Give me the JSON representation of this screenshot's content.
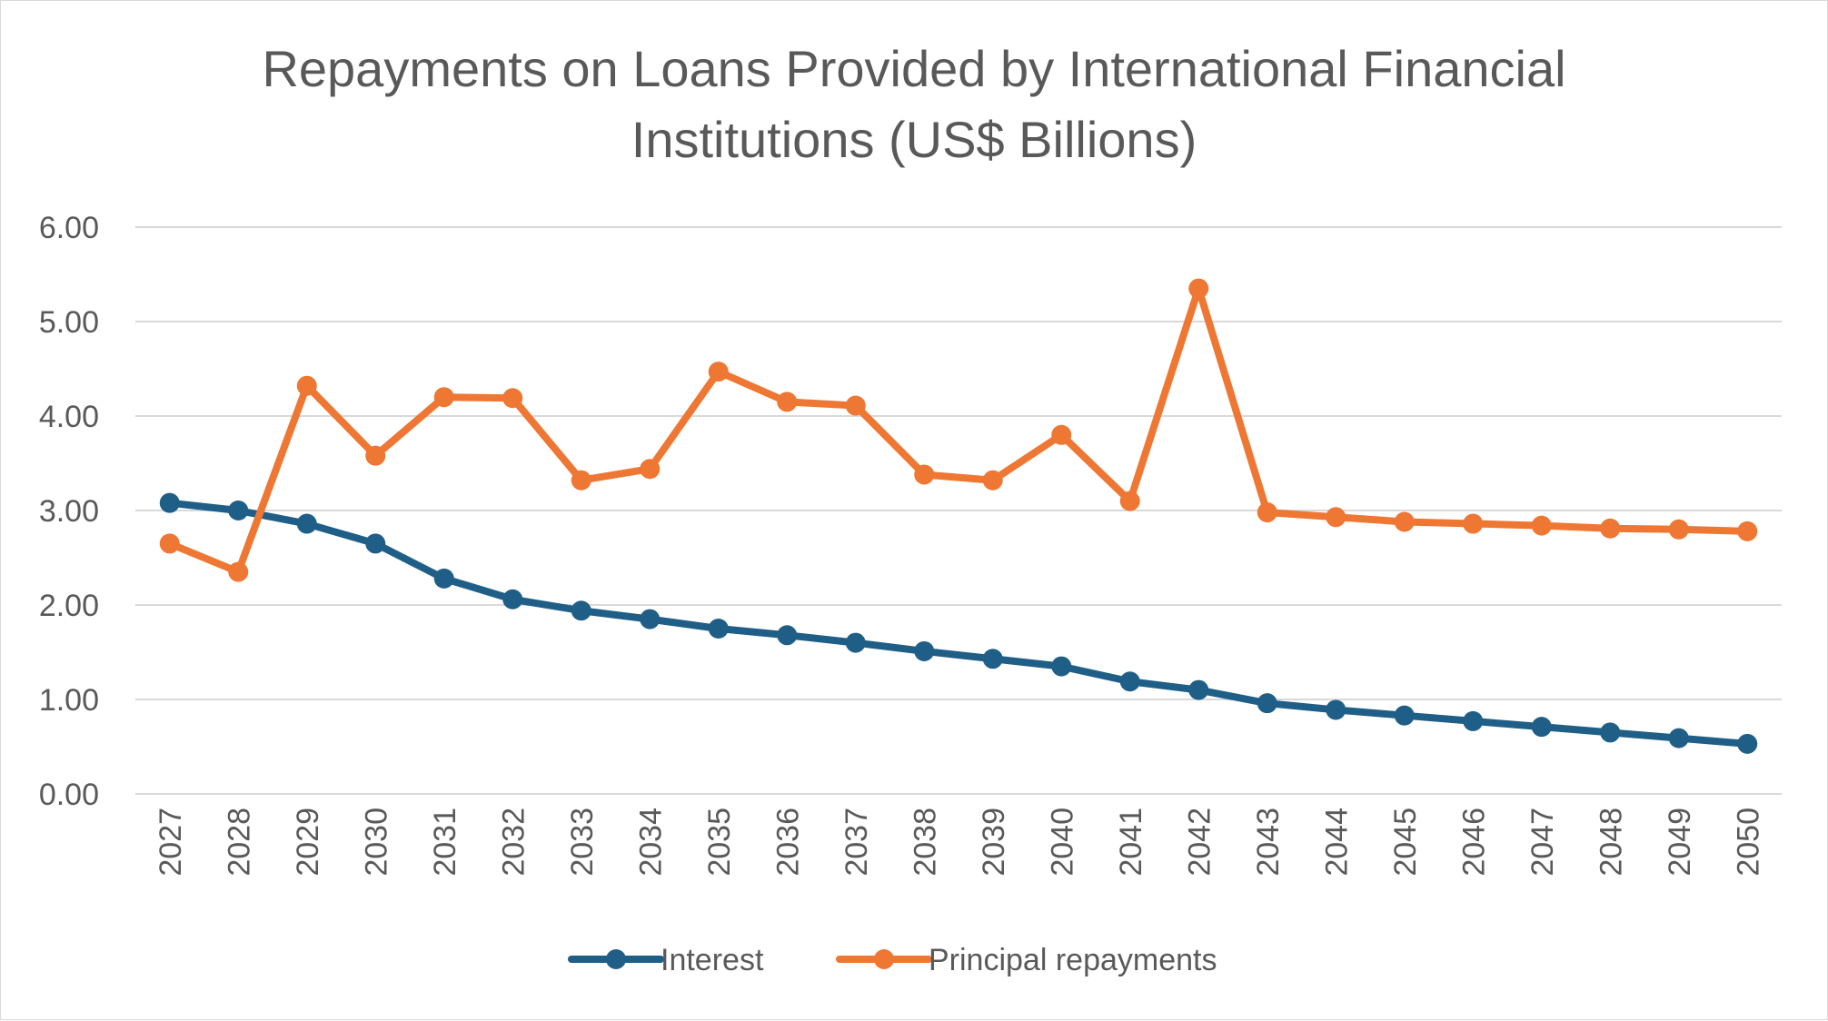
{
  "chart_data": {
    "type": "line",
    "title_lines": [
      "Repayments on Loans Provided by International Financial",
      "Institutions (US$ Billions)"
    ],
    "xlabel": "",
    "ylabel": "",
    "categories": [
      "2027",
      "2028",
      "2029",
      "2030",
      "2031",
      "2032",
      "2033",
      "2034",
      "2035",
      "2036",
      "2037",
      "2038",
      "2039",
      "2040",
      "2041",
      "2042",
      "2043",
      "2044",
      "2045",
      "2046",
      "2047",
      "2048",
      "2049",
      "2050"
    ],
    "y_ticks": [
      "0.00",
      "1.00",
      "2.00",
      "3.00",
      "4.00",
      "5.00",
      "6.00"
    ],
    "ylim": [
      0,
      6
    ],
    "grid": true,
    "legend_position": "bottom",
    "series": [
      {
        "name": "Interest",
        "color": "#1f5f87",
        "values": [
          3.08,
          3.0,
          2.86,
          2.65,
          2.28,
          2.06,
          1.94,
          1.85,
          1.75,
          1.68,
          1.6,
          1.51,
          1.43,
          1.35,
          1.19,
          1.1,
          0.96,
          0.89,
          0.83,
          0.77,
          0.71,
          0.65,
          0.59,
          0.53
        ]
      },
      {
        "name": "Principal repayments",
        "color": "#ee7733",
        "values": [
          2.65,
          2.35,
          4.32,
          3.58,
          4.2,
          4.19,
          3.32,
          3.44,
          4.47,
          4.15,
          4.11,
          3.38,
          3.32,
          3.8,
          3.1,
          5.35,
          2.98,
          2.93,
          2.88,
          2.86,
          2.84,
          2.81,
          2.8,
          2.78
        ]
      }
    ]
  }
}
